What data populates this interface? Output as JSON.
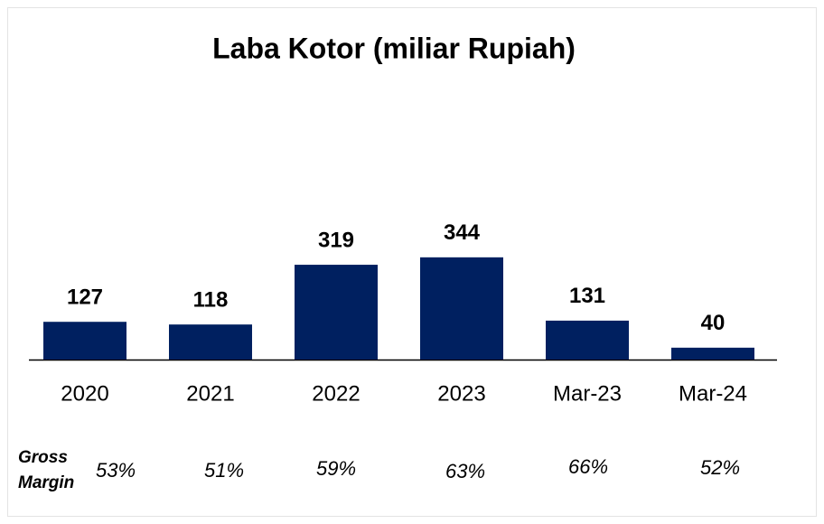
{
  "chart_data": {
    "type": "bar",
    "title": "Laba Kotor (miliar Rupiah)",
    "categories": [
      "2020",
      "2021",
      "2022",
      "2023",
      "Mar-23",
      "Mar-24"
    ],
    "values": [
      127,
      118,
      319,
      344,
      131,
      40
    ],
    "color": "#002060",
    "gross_margin": {
      "label": [
        "Gross",
        "Margin"
      ],
      "values": [
        53,
        51,
        59,
        63,
        66,
        52
      ],
      "value_labels": [
        "53%",
        "51%",
        "59%",
        "63%",
        "66%",
        "52%"
      ]
    }
  }
}
